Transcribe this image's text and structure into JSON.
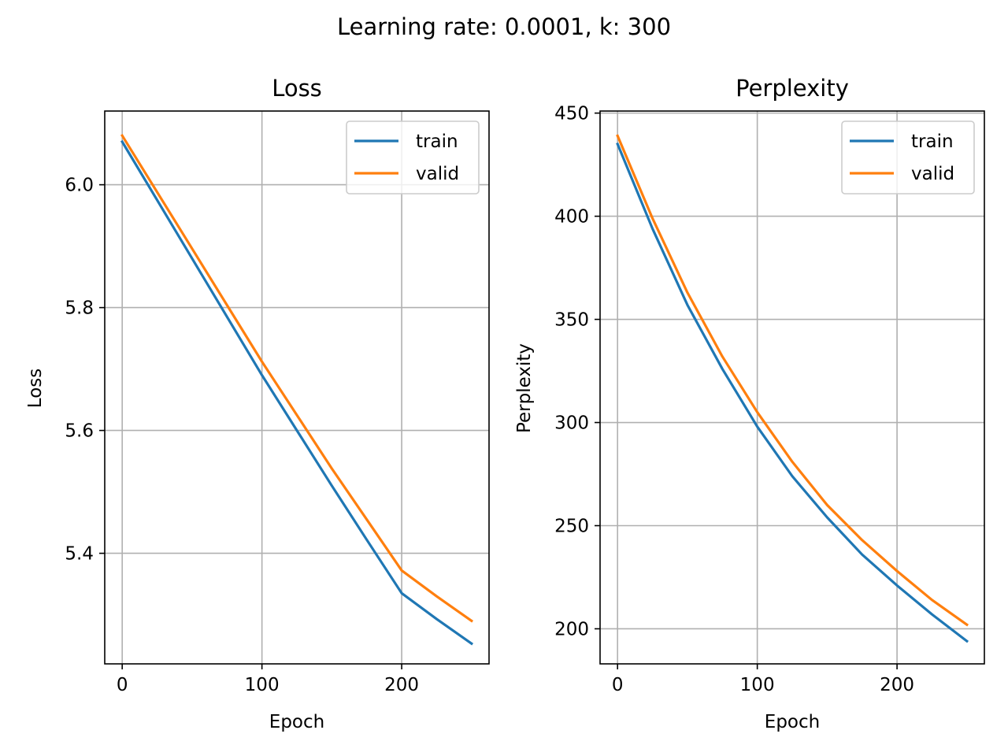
{
  "figure": {
    "suptitle": "Learning rate: 0.0001, k: 300"
  },
  "colors": {
    "train": "#1f77b4",
    "valid": "#ff7f0e",
    "grid": "#b0b0b0"
  },
  "chart_data": [
    {
      "type": "line",
      "title": "Loss",
      "xlabel": "Epoch",
      "ylabel": "Loss",
      "xlim": [
        -12.5,
        262.5
      ],
      "ylim": [
        5.22,
        6.12
      ],
      "xticks": [
        0,
        100,
        200
      ],
      "xtick_labels": [
        "0",
        "100",
        "200"
      ],
      "yticks": [
        5.4,
        5.6,
        5.8,
        6.0
      ],
      "ytick_labels": [
        "5.4",
        "5.6",
        "5.8",
        "6.0"
      ],
      "grid": true,
      "legend": "top-right",
      "x": [
        0,
        25,
        50,
        75,
        100,
        125,
        150,
        175,
        200,
        225,
        250
      ],
      "series": [
        {
          "name": "train",
          "values": [
            6.07,
            5.975,
            5.88,
            5.785,
            5.69,
            5.6,
            5.51,
            5.422,
            5.335,
            5.293,
            5.253
          ]
        },
        {
          "name": "valid",
          "values": [
            6.08,
            5.988,
            5.896,
            5.804,
            5.712,
            5.625,
            5.538,
            5.455,
            5.372,
            5.33,
            5.29
          ]
        }
      ]
    },
    {
      "type": "line",
      "title": "Perplexity",
      "xlabel": "Epoch",
      "ylabel": "Perplexity",
      "xlim": [
        -12.5,
        262.5
      ],
      "ylim": [
        183,
        451
      ],
      "xticks": [
        0,
        100,
        200
      ],
      "xtick_labels": [
        "0",
        "100",
        "200"
      ],
      "yticks": [
        200,
        250,
        300,
        350,
        400,
        450
      ],
      "ytick_labels": [
        "200",
        "250",
        "300",
        "350",
        "400",
        "450"
      ],
      "grid": true,
      "legend": "top-right",
      "x": [
        0,
        25,
        50,
        75,
        100,
        125,
        150,
        175,
        200,
        225,
        250
      ],
      "series": [
        {
          "name": "train",
          "values": [
            435,
            394,
            357,
            326,
            298,
            274,
            254,
            236,
            221,
            207,
            194
          ]
        },
        {
          "name": "valid",
          "values": [
            439,
            399,
            363,
            332,
            305,
            281,
            260,
            243,
            228,
            214,
            202
          ]
        }
      ]
    }
  ]
}
